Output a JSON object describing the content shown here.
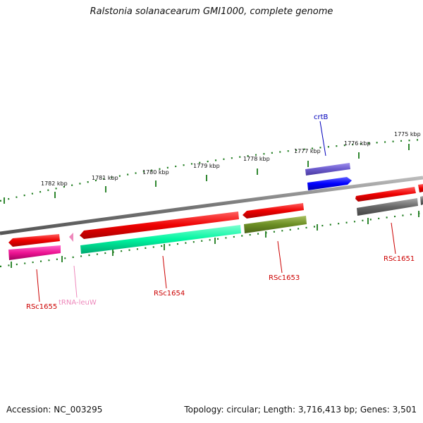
{
  "title": "Ralstonia solanacearum GMI1000, complete genome",
  "footer": {
    "accession": "Accession: NC_003295",
    "topology": "Topology: circular; Length: 3,716,413 bp; Genes: 3,501"
  },
  "colors": {
    "backbone": "#777777",
    "tick": "#1a7a1a",
    "cds_forward": "#e00000",
    "cds_reverse": "#e00000",
    "label_red": "#cc0000",
    "label_blue": "#0000bb",
    "label_pink": "#ee88bb"
  },
  "kbp_labels": [
    {
      "text": "1782 kbp",
      "kbp": 1782
    },
    {
      "text": "1781 kbp",
      "kbp": 1781
    },
    {
      "text": "1780 kbp",
      "kbp": 1780
    },
    {
      "text": "1779 kbp",
      "kbp": 1779
    },
    {
      "text": "1778 kbp",
      "kbp": 1778
    },
    {
      "text": "1777 kbp",
      "kbp": 1777
    },
    {
      "text": "1776 kbp",
      "kbp": 1776
    },
    {
      "text": "1775 kbp",
      "kbp": 1775
    }
  ],
  "genes": [
    {
      "label": "crtB",
      "color": "label_blue"
    },
    {
      "label": "RSc1651",
      "color": "label_red"
    },
    {
      "label": "RSc1653",
      "color": "label_red"
    },
    {
      "label": "RSc1654",
      "color": "label_red"
    },
    {
      "label": "RSc1655",
      "color": "label_red"
    },
    {
      "label": "tRNA-leuW",
      "color": "label_pink"
    }
  ]
}
